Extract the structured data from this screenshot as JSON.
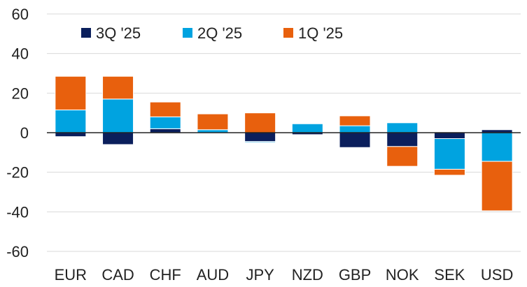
{
  "chart_data": {
    "type": "bar",
    "stacked": true,
    "categories": [
      "EUR",
      "CAD",
      "CHF",
      "AUD",
      "JPY",
      "NZD",
      "GBP",
      "NOK",
      "SEK",
      "USD"
    ],
    "series": [
      {
        "name": "3Q '25",
        "color": "#0b1f5c",
        "values": [
          -2,
          -6,
          2,
          0,
          -4.5,
          -1,
          -7.5,
          -7,
          -3,
          1.5
        ]
      },
      {
        "name": "2Q '25",
        "color": "#00a3e0",
        "values": [
          11.5,
          17,
          6,
          1.5,
          -0.5,
          4.5,
          3.5,
          5,
          -15.5,
          -14.5
        ]
      },
      {
        "name": "1Q '25",
        "color": "#e8600d",
        "values": [
          17,
          11.5,
          7.5,
          8,
          10,
          0,
          5,
          -10,
          -3,
          -25
        ]
      }
    ],
    "ylim": [
      -60,
      60
    ],
    "yticks": [
      60,
      40,
      20,
      0,
      -20,
      -40,
      -60
    ],
    "ytick_labels": [
      "60",
      "40",
      "20",
      "0",
      "-20",
      "-40",
      "-60"
    ],
    "grid": true,
    "legend_position": "top-left",
    "title": "",
    "xlabel": "",
    "ylabel": ""
  }
}
